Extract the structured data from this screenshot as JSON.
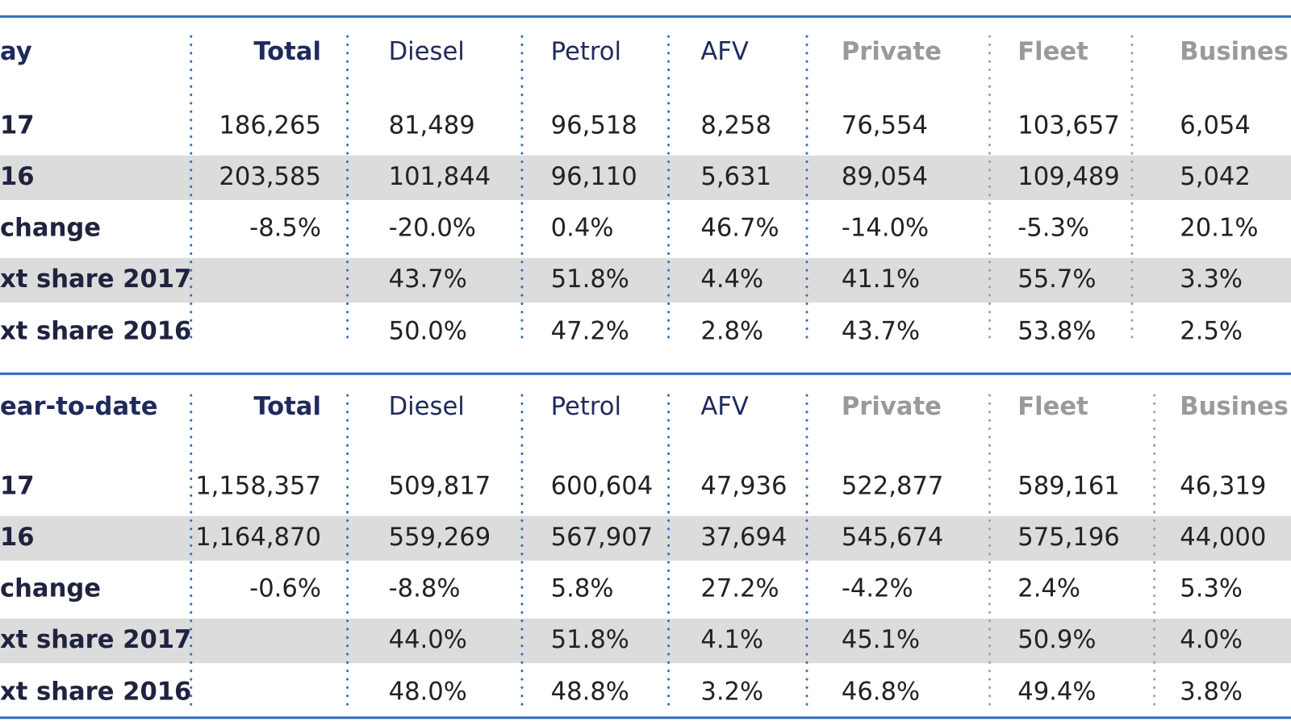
{
  "sections": [
    {
      "header": [
        "ay",
        "Total",
        "Diesel",
        "Petrol",
        "AFV",
        "Private",
        "Fleet",
        "Busines"
      ],
      "rows": [
        [
          "17",
          "186,265",
          "81,489",
          "96,518",
          "8,258",
          "76,554",
          "103,657",
          "6,054"
        ],
        [
          "16",
          "203,585",
          "101,844",
          "96,110",
          "5,631",
          "89,054",
          "109,489",
          "5,042"
        ],
        [
          "change",
          "-8.5%",
          "-20.0%",
          "0.4%",
          "46.7%",
          "-14.0%",
          "-5.3%",
          "20.1%"
        ],
        [
          "xt share 2017",
          null,
          "43.7%",
          "51.8%",
          "4.4%",
          "41.1%",
          "55.7%",
          "3.3%"
        ],
        [
          "xt share 2016",
          null,
          "50.0%",
          "47.2%",
          "2.8%",
          "43.7%",
          "53.8%",
          "2.5%"
        ]
      ]
    },
    {
      "header": [
        "ear-to-date",
        "Total",
        "Diesel",
        "Petrol",
        "AFV",
        "Private",
        "Fleet",
        "Busines"
      ],
      "rows": [
        [
          "17",
          "1,158,357",
          "509,817",
          "600,604",
          "47,936",
          "522,877",
          "589,161",
          "46,319"
        ],
        [
          "16",
          "1,164,870",
          "559,269",
          "567,907",
          "37,694",
          "545,674",
          "575,196",
          "44,000"
        ],
        [
          "change",
          "-0.6%",
          "-8.8%",
          "5.8%",
          "27.2%",
          "-4.2%",
          "2.4%",
          "5.3%"
        ],
        [
          "xt share 2017",
          null,
          "44.0%",
          "51.8%",
          "4.1%",
          "45.1%",
          "50.9%",
          "4.0%"
        ],
        [
          "xt share 2016",
          null,
          "48.0%",
          "48.8%",
          "3.2%",
          "46.8%",
          "49.4%",
          "3.8%"
        ]
      ]
    }
  ]
}
